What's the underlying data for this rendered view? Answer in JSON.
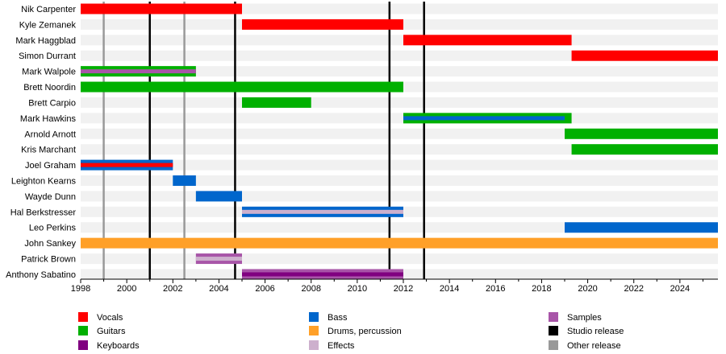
{
  "chart_data": {
    "type": "timeline",
    "xlim": [
      1998,
      2025.65
    ],
    "x_ticks": [
      1998,
      2000,
      2002,
      2004,
      2006,
      2008,
      2010,
      2012,
      2014,
      2016,
      2018,
      2020,
      2022,
      2024
    ],
    "roles": {
      "vocals": {
        "label": "Vocals",
        "color": "#FF0000"
      },
      "guitars": {
        "label": "Guitars",
        "color": "#00B000"
      },
      "keyboards": {
        "label": "Keyboards",
        "color": "#800080"
      },
      "bass": {
        "label": "Bass",
        "color": "#0066CC"
      },
      "drums": {
        "label": "Drums, percussion",
        "color": "#FFA028"
      },
      "effects": {
        "label": "Effects",
        "color": "#CDB0CD"
      },
      "samples": {
        "label": "Samples",
        "color": "#A855A8"
      },
      "studio": {
        "label": "Studio release",
        "color": "#000000"
      },
      "other": {
        "label": "Other release",
        "color": "#999999"
      }
    },
    "legend_order": [
      [
        "vocals",
        "guitars",
        "keyboards"
      ],
      [
        "bass",
        "drums",
        "effects"
      ],
      [
        "samples",
        "studio",
        "other"
      ]
    ],
    "members": [
      {
        "name": "Nik Carpenter",
        "bars": [
          {
            "role": "vocals",
            "from": 1998,
            "to": 2005
          }
        ]
      },
      {
        "name": "Kyle Zemanek",
        "bars": [
          {
            "role": "vocals",
            "from": 2005,
            "to": 2012
          }
        ]
      },
      {
        "name": "Mark Haggblad",
        "bars": [
          {
            "role": "vocals",
            "from": 2012,
            "to": 2019.3
          }
        ]
      },
      {
        "name": "Simon Durrant",
        "bars": [
          {
            "role": "vocals",
            "from": 2019.3,
            "to": 2025.65
          }
        ]
      },
      {
        "name": "Mark Walpole",
        "bars": [
          {
            "role": "guitars",
            "from": 1998,
            "to": 2003
          }
        ],
        "stripes": [
          {
            "role": "samples",
            "from": 1998,
            "to": 2003
          }
        ]
      },
      {
        "name": "Brett Noordin",
        "bars": [
          {
            "role": "guitars",
            "from": 1998,
            "to": 2012
          }
        ]
      },
      {
        "name": "Brett Carpio",
        "bars": [
          {
            "role": "guitars",
            "from": 2005,
            "to": 2008
          }
        ]
      },
      {
        "name": "Mark Hawkins",
        "bars": [
          {
            "role": "guitars",
            "from": 2012,
            "to": 2019.3
          }
        ],
        "stripes": [
          {
            "role": "bass",
            "from": 2012,
            "to": 2019
          }
        ]
      },
      {
        "name": "Arnold Arnott",
        "bars": [
          {
            "role": "guitars",
            "from": 2019,
            "to": 2025.65
          }
        ]
      },
      {
        "name": "Kris Marchant",
        "bars": [
          {
            "role": "guitars",
            "from": 2019.3,
            "to": 2025.65
          }
        ]
      },
      {
        "name": "Joel Graham",
        "bars": [
          {
            "role": "bass",
            "from": 1998,
            "to": 2002
          }
        ],
        "stripes": [
          {
            "role": "vocals",
            "from": 1998,
            "to": 2002
          }
        ]
      },
      {
        "name": "Leighton Kearns",
        "bars": [
          {
            "role": "bass",
            "from": 2002,
            "to": 2003
          }
        ]
      },
      {
        "name": "Wayde Dunn",
        "bars": [
          {
            "role": "bass",
            "from": 2003,
            "to": 2005
          }
        ]
      },
      {
        "name": "Hal Berkstresser",
        "bars": [
          {
            "role": "bass",
            "from": 2005,
            "to": 2012
          }
        ],
        "stripes": [
          {
            "role": "effects",
            "from": 2005,
            "to": 2012
          }
        ]
      },
      {
        "name": "Leo Perkins",
        "bars": [
          {
            "role": "bass",
            "from": 2019,
            "to": 2025.65
          }
        ]
      },
      {
        "name": "John Sankey",
        "bars": [
          {
            "role": "drums",
            "from": 1998,
            "to": 2025.65
          }
        ]
      },
      {
        "name": "Patrick Brown",
        "bars": [
          {
            "role": "samples",
            "from": 2003,
            "to": 2005
          }
        ],
        "stripes": [
          {
            "role": "effects",
            "from": 2003,
            "to": 2005
          }
        ]
      },
      {
        "name": "Anthony Sabatino",
        "bars": [
          {
            "role": "samples",
            "from": 2005,
            "to": 2012
          }
        ],
        "stripes": [
          {
            "role": "keyboards",
            "from": 2005,
            "to": 2012
          }
        ]
      }
    ],
    "releases": [
      {
        "type": "other",
        "year": 1999
      },
      {
        "type": "studio",
        "year": 2001
      },
      {
        "type": "other",
        "year": 2002.5
      },
      {
        "type": "studio",
        "year": 2004.7
      },
      {
        "type": "studio",
        "year": 2011.4
      },
      {
        "type": "studio",
        "year": 2012.9
      }
    ]
  }
}
